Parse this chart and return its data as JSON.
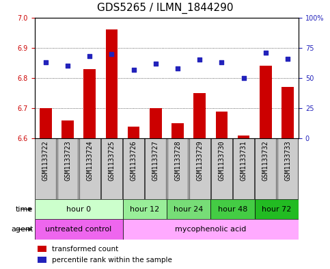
{
  "title": "GDS5265 / ILMN_1844290",
  "samples": [
    "GSM1133722",
    "GSM1133723",
    "GSM1133724",
    "GSM1133725",
    "GSM1133726",
    "GSM1133727",
    "GSM1133728",
    "GSM1133729",
    "GSM1133730",
    "GSM1133731",
    "GSM1133732",
    "GSM1133733"
  ],
  "transformed_count": [
    6.7,
    6.66,
    6.83,
    6.96,
    6.64,
    6.7,
    6.65,
    6.75,
    6.69,
    6.61,
    6.84,
    6.77
  ],
  "percentile_rank": [
    63,
    60,
    68,
    70,
    57,
    62,
    58,
    65,
    63,
    50,
    71,
    66
  ],
  "ylim_left": [
    6.6,
    7.0
  ],
  "ylim_right": [
    0,
    100
  ],
  "yticks_left": [
    6.6,
    6.7,
    6.8,
    6.9,
    7.0
  ],
  "yticks_right": [
    0,
    25,
    50,
    75,
    100
  ],
  "bar_color": "#cc0000",
  "dot_color": "#2222bb",
  "bar_bottom": 6.6,
  "time_groups": [
    {
      "label": "hour 0",
      "start": 0,
      "end": 4,
      "color": "#ccffcc"
    },
    {
      "label": "hour 12",
      "start": 4,
      "end": 6,
      "color": "#99ee99"
    },
    {
      "label": "hour 24",
      "start": 6,
      "end": 8,
      "color": "#77dd77"
    },
    {
      "label": "hour 48",
      "start": 8,
      "end": 10,
      "color": "#44cc44"
    },
    {
      "label": "hour 72",
      "start": 10,
      "end": 12,
      "color": "#22bb22"
    }
  ],
  "agent_groups": [
    {
      "label": "untreated control",
      "start": 0,
      "end": 4,
      "color": "#ee66ee"
    },
    {
      "label": "mycophenolic acid",
      "start": 4,
      "end": 12,
      "color": "#ffaaff"
    }
  ],
  "axis_label_color_left": "#cc0000",
  "axis_label_color_right": "#2222bb",
  "bg_color": "#ffffff",
  "sample_bg_color": "#cccccc",
  "time_label_fontsize": 8,
  "agent_label_fontsize": 8,
  "tick_fontsize": 7,
  "title_fontsize": 11
}
